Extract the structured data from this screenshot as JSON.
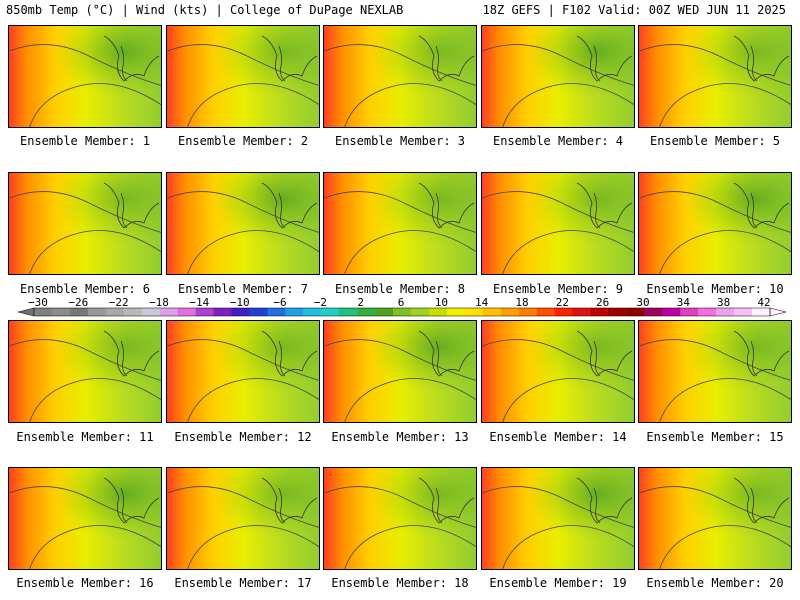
{
  "header": {
    "left": "850mb Temp (°C) | Wind (kts) | College of DuPage NEXLAB",
    "right": "18Z GEFS | F102 Valid: 00Z WED JUN 11 2025"
  },
  "members": [
    {
      "label": "Ensemble Member: 1"
    },
    {
      "label": "Ensemble Member: 2"
    },
    {
      "label": "Ensemble Member: 3"
    },
    {
      "label": "Ensemble Member: 4"
    },
    {
      "label": "Ensemble Member: 5"
    },
    {
      "label": "Ensemble Member: 6"
    },
    {
      "label": "Ensemble Member: 7"
    },
    {
      "label": "Ensemble Member: 8"
    },
    {
      "label": "Ensemble Member: 9"
    },
    {
      "label": "Ensemble Member: 10"
    },
    {
      "label": "Ensemble Member: 11"
    },
    {
      "label": "Ensemble Member: 12"
    },
    {
      "label": "Ensemble Member: 13"
    },
    {
      "label": "Ensemble Member: 14"
    },
    {
      "label": "Ensemble Member: 15"
    },
    {
      "label": "Ensemble Member: 16"
    },
    {
      "label": "Ensemble Member: 17"
    },
    {
      "label": "Ensemble Member: 18"
    },
    {
      "label": "Ensemble Member: 19"
    },
    {
      "label": "Ensemble Member: 20"
    }
  ],
  "colorbar": {
    "labels": [
      "−30",
      "−26",
      "−22",
      "−18",
      "−14",
      "−10",
      "−6",
      "−2",
      "2",
      "6",
      "10",
      "14",
      "18",
      "22",
      "26",
      "30",
      "34",
      "38",
      "42"
    ],
    "colors": [
      "#808080",
      "#8c8c8c",
      "#787878",
      "#989898",
      "#a8a8a8",
      "#b8b8b8",
      "#c8c8d8",
      "#e0a0e8",
      "#e070e0",
      "#b040d0",
      "#8020c0",
      "#4020c0",
      "#2040d0",
      "#2070e0",
      "#20a0e0",
      "#20c0e0",
      "#20d0c0",
      "#20c080",
      "#30b040",
      "#50a020",
      "#80c020",
      "#a0d020",
      "#c8e000",
      "#f0f000",
      "#ffe000",
      "#ffc000",
      "#ffa000",
      "#ff8000",
      "#ff5000",
      "#ff2000",
      "#e01010",
      "#c00000",
      "#a00000",
      "#900000",
      "#a00060",
      "#c000a0",
      "#e040c0",
      "#f070e0",
      "#f0a0f0",
      "#f8c0f8",
      "#fff0ff"
    ]
  }
}
